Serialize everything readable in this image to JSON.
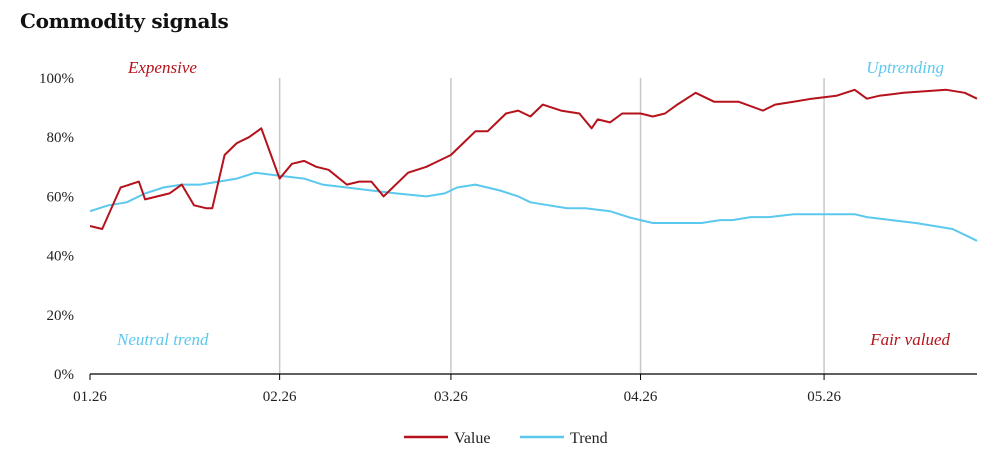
{
  "title": "Commodity signals",
  "chart_data": {
    "type": "line",
    "title": "Commodity signals",
    "ylim": [
      0,
      100
    ],
    "yticks": [
      "100%",
      "80%",
      "60%",
      "40%",
      "20%",
      "0%"
    ],
    "ytick_values": [
      100,
      80,
      60,
      40,
      20,
      0
    ],
    "xticks": [
      "01.26",
      "02.26",
      "03.26",
      "04.26",
      "05.26"
    ],
    "xtick_positions": [
      0,
      31,
      59,
      90,
      120
    ],
    "x_range": [
      0,
      145
    ],
    "grid": "vertical gridlines at month starts",
    "legend_placement": "bottom-center",
    "annotations": {
      "top_left": "Expensive",
      "top_right": "Uptrending",
      "bottom_left": "Neutral trend",
      "bottom_right": "Fair valued"
    },
    "colors": {
      "value": "#b5121b",
      "trend": "#5bc8ee",
      "grid": "#c8c8c8",
      "axis": "#000000"
    },
    "series": [
      {
        "name": "Value",
        "x": [
          0,
          2,
          5,
          8,
          9,
          11,
          13,
          15,
          17,
          19,
          20,
          22,
          24,
          26,
          28,
          31,
          33,
          35,
          37,
          39,
          42,
          44,
          46,
          48,
          52,
          55,
          57,
          59,
          61,
          63,
          65,
          68,
          70,
          72,
          74,
          77,
          80,
          82,
          83,
          85,
          87,
          90,
          92,
          94,
          96,
          99,
          102,
          104,
          106,
          110,
          112,
          115,
          118,
          122,
          125,
          127,
          129,
          133,
          140,
          143,
          145
        ],
        "values": [
          50,
          49,
          63,
          65,
          59,
          60,
          61,
          64,
          57,
          56,
          56,
          74,
          78,
          80,
          83,
          66,
          71,
          72,
          70,
          69,
          64,
          65,
          65,
          60,
          68,
          70,
          72,
          74,
          78,
          82,
          82,
          88,
          89,
          87,
          91,
          89,
          88,
          83,
          86,
          85,
          88,
          88,
          87,
          88,
          91,
          95,
          92,
          92,
          92,
          89,
          91,
          92,
          93,
          94,
          96,
          93,
          94,
          95,
          96,
          95,
          93
        ]
      },
      {
        "name": "Trend",
        "x": [
          0,
          3,
          6,
          9,
          12,
          15,
          18,
          21,
          24,
          27,
          31,
          35,
          38,
          42,
          46,
          50,
          55,
          58,
          60,
          63,
          67,
          70,
          72,
          75,
          78,
          81,
          85,
          88,
          90,
          92,
          95,
          100,
          103,
          105,
          108,
          111,
          115,
          120,
          125,
          127,
          131,
          135,
          138,
          141,
          144,
          145
        ],
        "values": [
          55,
          57,
          58,
          61,
          63,
          64,
          64,
          65,
          66,
          68,
          67,
          66,
          64,
          63,
          62,
          61,
          60,
          61,
          63,
          64,
          62,
          60,
          58,
          57,
          56,
          56,
          55,
          53,
          52,
          51,
          51,
          51,
          52,
          52,
          53,
          53,
          54,
          54,
          54,
          53,
          52,
          51,
          50,
          49,
          46,
          45
        ]
      }
    ]
  }
}
